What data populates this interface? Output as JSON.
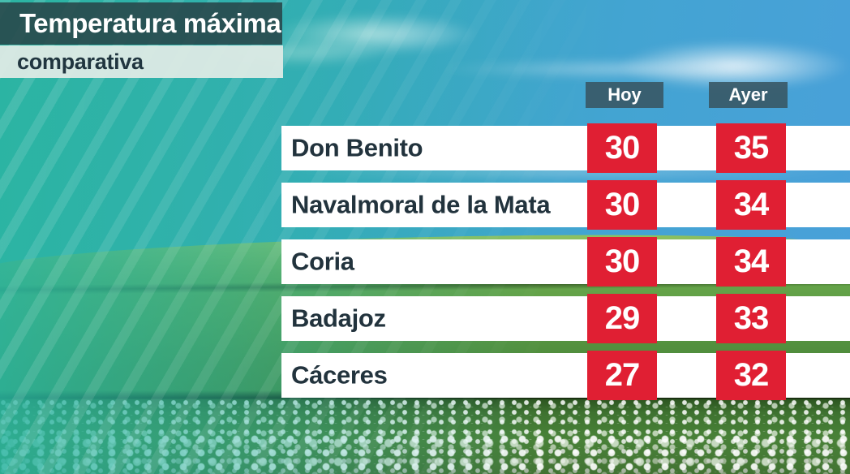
{
  "chart_data": {
    "type": "table",
    "title": "Temperatura máxima",
    "subtitle": "comparativa",
    "categories": [
      "Don Benito",
      "Navalmoral de la Mata",
      "Coria",
      "Badajoz",
      "Cáceres"
    ],
    "series": [
      {
        "name": "Hoy",
        "values": [
          "30",
          "30",
          "30",
          "29",
          "27"
        ]
      },
      {
        "name": "Ayer",
        "values": [
          "35",
          "34",
          "34",
          "33",
          "32"
        ]
      }
    ],
    "units": "°C (implied, not shown)",
    "layout": {
      "value_columns_position": "right",
      "rows_background": "white bars over landscape photo"
    }
  },
  "colors": {
    "temp_box_red": "#e01f33",
    "title_bar_teal": "#28484b",
    "subtitle_bar_mint": "#ddeae5",
    "column_header_slate": "#385562",
    "row_background": "#ffffff",
    "city_text": "#22333d",
    "background_teal": "#29b4a1",
    "background_sky_blue": "#4aa0da",
    "background_grass_green": "#4f8c3c"
  }
}
